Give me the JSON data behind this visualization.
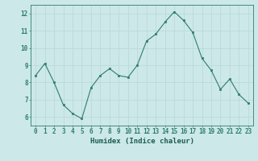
{
  "x": [
    0,
    1,
    2,
    3,
    4,
    5,
    6,
    7,
    8,
    9,
    10,
    11,
    12,
    13,
    14,
    15,
    16,
    17,
    18,
    19,
    20,
    21,
    22,
    23
  ],
  "y": [
    8.4,
    9.1,
    8.0,
    6.7,
    6.2,
    5.9,
    7.7,
    8.4,
    8.8,
    8.4,
    8.3,
    9.0,
    10.4,
    10.8,
    11.5,
    12.1,
    11.6,
    10.9,
    9.4,
    8.7,
    7.6,
    8.2,
    7.3,
    6.8
  ],
  "xlabel": "Humidex (Indice chaleur)",
  "ylim": [
    5.5,
    12.5
  ],
  "xlim": [
    -0.5,
    23.5
  ],
  "yticks": [
    6,
    7,
    8,
    9,
    10,
    11,
    12
  ],
  "xticks": [
    0,
    1,
    2,
    3,
    4,
    5,
    6,
    7,
    8,
    9,
    10,
    11,
    12,
    13,
    14,
    15,
    16,
    17,
    18,
    19,
    20,
    21,
    22,
    23
  ],
  "line_color": "#2e7d6e",
  "marker_color": "#2e7d6e",
  "bg_color": "#cce8e8",
  "grid_color": "#b8d8d8",
  "axis_color": "#2e7d6e",
  "tick_color": "#2e7d6e",
  "label_color": "#1a5c50",
  "xlabel_fontsize": 6.5,
  "tick_fontsize": 5.5
}
